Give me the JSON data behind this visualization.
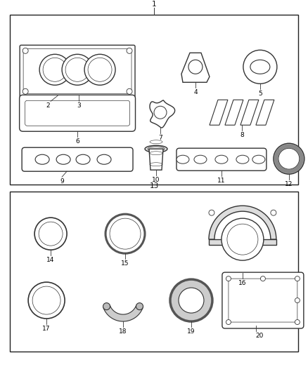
{
  "bg_color": "#ffffff",
  "border_color": "#222222",
  "line_color": "#333333",
  "fig_width": 4.38,
  "fig_height": 5.33,
  "dpi": 100,
  "fs": 6.5,
  "nfs": 7.5
}
